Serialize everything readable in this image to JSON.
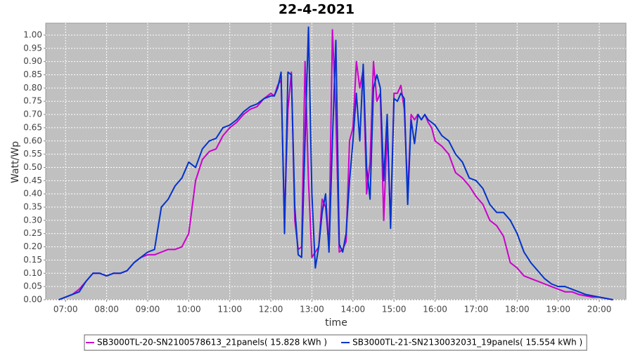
{
  "chart_data": {
    "type": "line",
    "title": "22-4-2021",
    "x_label": "time",
    "y_label": "Watt/Wp",
    "grid": true,
    "legend": "bottom",
    "xlim": [
      391,
      1239
    ],
    "xticks": [
      {
        "value": 420,
        "label": "07:00"
      },
      {
        "value": 480,
        "label": "08:00"
      },
      {
        "value": 540,
        "label": "09:00"
      },
      {
        "value": 600,
        "label": "10:00"
      },
      {
        "value": 660,
        "label": "11:00"
      },
      {
        "value": 720,
        "label": "12:00"
      },
      {
        "value": 780,
        "label": "13:00"
      },
      {
        "value": 840,
        "label": "14:00"
      },
      {
        "value": 900,
        "label": "15:00"
      },
      {
        "value": 960,
        "label": "16:00"
      },
      {
        "value": 1020,
        "label": "17:00"
      },
      {
        "value": 1080,
        "label": "18:00"
      },
      {
        "value": 1140,
        "label": "19:00"
      },
      {
        "value": 1200,
        "label": "20:00"
      }
    ],
    "ylim": [
      0,
      1.045
    ],
    "yticks": [
      {
        "value": 0,
        "label": "0.00"
      },
      {
        "value": 0.05,
        "label": "0.05"
      },
      {
        "value": 0.1,
        "label": "0.10"
      },
      {
        "value": 0.15,
        "label": "0.15"
      },
      {
        "value": 0.2,
        "label": "0.20"
      },
      {
        "value": 0.25,
        "label": "0.25"
      },
      {
        "value": 0.3,
        "label": "0.30"
      },
      {
        "value": 0.35,
        "label": "0.35"
      },
      {
        "value": 0.4,
        "label": "0.40"
      },
      {
        "value": 0.45,
        "label": "0.45"
      },
      {
        "value": 0.5,
        "label": "0.50"
      },
      {
        "value": 0.55,
        "label": "0.55"
      },
      {
        "value": 0.6,
        "label": "0.60"
      },
      {
        "value": 0.65,
        "label": "0.65"
      },
      {
        "value": 0.7,
        "label": "0.70"
      },
      {
        "value": 0.75,
        "label": "0.75"
      },
      {
        "value": 0.8,
        "label": "0.80"
      },
      {
        "value": 0.85,
        "label": "0.85"
      },
      {
        "value": 0.9,
        "label": "0.90"
      },
      {
        "value": 0.95,
        "label": "0.95"
      },
      {
        "value": 1,
        "label": "1.00"
      }
    ],
    "x": [
      410,
      420,
      430,
      440,
      450,
      460,
      470,
      480,
      490,
      500,
      510,
      520,
      530,
      540,
      550,
      560,
      570,
      580,
      590,
      600,
      610,
      620,
      630,
      640,
      650,
      660,
      670,
      680,
      690,
      700,
      710,
      720,
      725,
      730,
      735,
      740,
      745,
      750,
      755,
      760,
      765,
      770,
      775,
      780,
      785,
      790,
      795,
      800,
      805,
      810,
      815,
      820,
      825,
      830,
      835,
      840,
      845,
      850,
      855,
      860,
      865,
      870,
      875,
      880,
      885,
      890,
      895,
      900,
      905,
      910,
      915,
      920,
      925,
      930,
      935,
      940,
      945,
      950,
      955,
      960,
      970,
      980,
      990,
      1000,
      1010,
      1020,
      1030,
      1040,
      1050,
      1060,
      1070,
      1080,
      1090,
      1100,
      1110,
      1120,
      1130,
      1140,
      1150,
      1160,
      1170,
      1180,
      1190,
      1200,
      1210,
      1220
    ],
    "series": [
      {
        "name": "SB3000TL-20-SN2100578613_21panels( 15.828 kWh )",
        "color": "#cc00cc",
        "values": [
          0,
          0.01,
          0.02,
          0.04,
          0.07,
          0.1,
          0.1,
          0.09,
          0.1,
          0.1,
          0.11,
          0.14,
          0.16,
          0.17,
          0.17,
          0.18,
          0.19,
          0.19,
          0.2,
          0.25,
          0.45,
          0.53,
          0.56,
          0.57,
          0.62,
          0.65,
          0.67,
          0.7,
          0.72,
          0.73,
          0.76,
          0.78,
          0.77,
          0.81,
          0.83,
          0.3,
          0.72,
          0.86,
          0.3,
          0.19,
          0.2,
          0.9,
          0.45,
          0.16,
          0.18,
          0.2,
          0.38,
          0.35,
          0.2,
          1.02,
          0.7,
          0.18,
          0.19,
          0.22,
          0.6,
          0.65,
          0.9,
          0.8,
          0.87,
          0.4,
          0.52,
          0.9,
          0.75,
          0.78,
          0.3,
          0.64,
          0.29,
          0.78,
          0.78,
          0.81,
          0.72,
          0.4,
          0.7,
          0.68,
          0.7,
          0.68,
          0.7,
          0.67,
          0.65,
          0.6,
          0.58,
          0.55,
          0.48,
          0.46,
          0.43,
          0.39,
          0.36,
          0.3,
          0.28,
          0.24,
          0.14,
          0.12,
          0.09,
          0.08,
          0.07,
          0.06,
          0.05,
          0.04,
          0.03,
          0.03,
          0.02,
          0.015,
          0.01,
          0.01,
          0.005,
          0
        ]
      },
      {
        "name": "SB3000TL-21-SN2130032031_19panels( 15.554 kWh )",
        "color": "#0033cc",
        "values": [
          0,
          0.01,
          0.02,
          0.03,
          0.07,
          0.1,
          0.1,
          0.09,
          0.1,
          0.1,
          0.11,
          0.14,
          0.16,
          0.18,
          0.19,
          0.35,
          0.38,
          0.43,
          0.46,
          0.52,
          0.5,
          0.57,
          0.6,
          0.61,
          0.65,
          0.66,
          0.68,
          0.71,
          0.73,
          0.74,
          0.76,
          0.77,
          0.77,
          0.8,
          0.86,
          0.25,
          0.86,
          0.85,
          0.35,
          0.17,
          0.16,
          0.6,
          1.03,
          0.4,
          0.12,
          0.2,
          0.33,
          0.4,
          0.18,
          0.6,
          0.98,
          0.21,
          0.18,
          0.25,
          0.45,
          0.6,
          0.78,
          0.6,
          0.89,
          0.5,
          0.38,
          0.8,
          0.85,
          0.8,
          0.45,
          0.7,
          0.27,
          0.76,
          0.75,
          0.78,
          0.76,
          0.36,
          0.68,
          0.59,
          0.7,
          0.68,
          0.7,
          0.68,
          0.67,
          0.66,
          0.62,
          0.6,
          0.55,
          0.52,
          0.46,
          0.45,
          0.42,
          0.36,
          0.33,
          0.33,
          0.3,
          0.25,
          0.18,
          0.14,
          0.11,
          0.08,
          0.06,
          0.05,
          0.05,
          0.04,
          0.03,
          0.02,
          0.015,
          0.01,
          0.005,
          0
        ]
      }
    ]
  }
}
